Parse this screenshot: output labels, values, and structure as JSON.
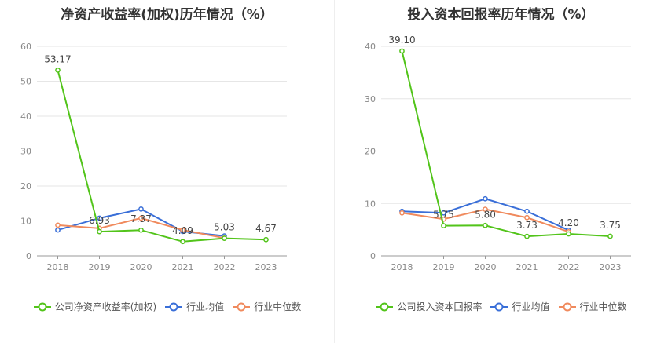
{
  "chart_data": [
    {
      "type": "line",
      "title": "净资产收益率(加权)历年情况（%）",
      "categories": [
        "2018",
        "2019",
        "2020",
        "2021",
        "2022",
        "2023"
      ],
      "ylim": [
        0,
        60
      ],
      "yticks": [
        0,
        10,
        20,
        30,
        40,
        50,
        60
      ],
      "grid": true,
      "legend_position": "bottom",
      "series": [
        {
          "name": "公司净资产收益率(加权)",
          "color": "#52c41a",
          "values": [
            53.17,
            6.93,
            7.37,
            4.09,
            5.03,
            4.67
          ],
          "labels": [
            "53.17",
            "6.93",
            "7.37",
            "4.09",
            "5.03",
            "4.67"
          ]
        },
        {
          "name": "行业均值",
          "color": "#3a6fd8",
          "values": [
            7.4,
            10.8,
            13.4,
            7.0,
            5.7,
            null
          ]
        },
        {
          "name": "行业中位数",
          "color": "#f08a5d",
          "values": [
            8.8,
            7.9,
            10.8,
            7.4,
            5.1,
            null
          ]
        }
      ]
    },
    {
      "type": "line",
      "title": "投入资本回报率历年情况（%）",
      "categories": [
        "2018",
        "2019",
        "2020",
        "2021",
        "2022",
        "2023"
      ],
      "ylim": [
        0,
        40
      ],
      "yticks": [
        0,
        10,
        20,
        30,
        40
      ],
      "grid": true,
      "legend_position": "bottom",
      "series": [
        {
          "name": "公司投入资本回报率",
          "color": "#52c41a",
          "values": [
            39.1,
            5.75,
            5.8,
            3.73,
            4.2,
            3.75
          ],
          "labels": [
            "39.10",
            "5.75",
            "5.80",
            "3.73",
            "4.20",
            "3.75"
          ]
        },
        {
          "name": "行业均值",
          "color": "#3a6fd8",
          "values": [
            8.5,
            8.2,
            10.9,
            8.5,
            4.9,
            null
          ]
        },
        {
          "name": "行业中位数",
          "color": "#f08a5d",
          "values": [
            8.2,
            7.0,
            8.9,
            7.3,
            4.6,
            null
          ]
        }
      ]
    }
  ]
}
